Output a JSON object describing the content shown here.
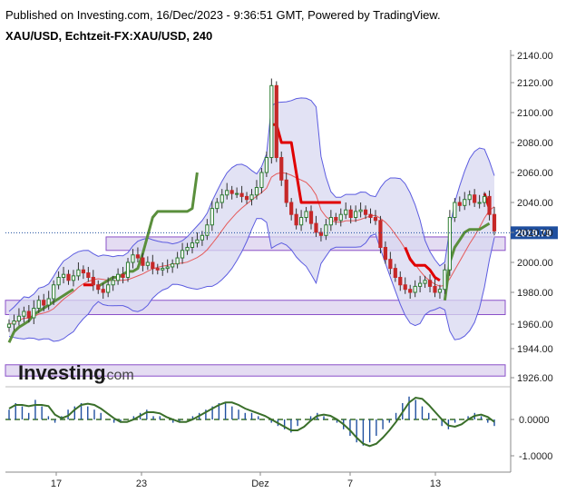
{
  "header": {
    "published": "Published on Investing.com, 16/Dec/2023 - 9:36:51 GMT, Powered by TradingView.",
    "symbol": "XAU/USD, Echtzeit-FX:XAU/USD, 240"
  },
  "logo": {
    "word": "Investing",
    "domain": ".com"
  },
  "colors": {
    "up": "#2e7d32",
    "down": "#c62828",
    "band_fill": "#d8d8f0",
    "band_line": "#5c5ce0",
    "supertrend_up": "#5a8f3c",
    "supertrend_down": "#e00000",
    "mid_line": "#e55a5a",
    "zone_fill": "#e4dcf2",
    "zone_line": "#8a50c8",
    "macd_line": "#3a6f2a",
    "hist": "#1f4f9f"
  },
  "chart_data": [
    {
      "type": "candlestick",
      "title": "XAU/USD, Echtzeit-FX:XAU/USD, 240",
      "y_axis_ticks": [
        "2140.00",
        "2120.00",
        "2100.00",
        "2080.00",
        "2060.00",
        "2040.00",
        "2020.00",
        "2000.00",
        "1980.00",
        "1960.00",
        "1944.00",
        "1926.00"
      ],
      "ylim": [
        1920,
        2145
      ],
      "x_axis_ticks": [
        "17",
        "23",
        "Dez",
        "7",
        "13"
      ],
      "last_price": "2019.79",
      "close_approx": [
        1960,
        1962,
        1965,
        1968,
        1964,
        1970,
        1975,
        1972,
        1976,
        1985,
        1990,
        1992,
        1988,
        1991,
        1995,
        1993,
        1990,
        1985,
        1982,
        1980,
        1985,
        1988,
        1992,
        1990,
        2000,
        2005,
        2003,
        1998,
        2000,
        1996,
        1995,
        1996,
        1997,
        1999,
        2003,
        2008,
        2010,
        2013,
        2015,
        2018,
        2025,
        2036,
        2040,
        2045,
        2048,
        2046,
        2046,
        2044,
        2042,
        2045,
        2050,
        2060,
        2070,
        2118,
        2070,
        2055,
        2040,
        2032,
        2025,
        2030,
        2034,
        2026,
        2020,
        2018,
        2025,
        2030,
        2028,
        2032,
        2035,
        2030,
        2034,
        2035,
        2032,
        2030,
        2028,
        2010,
        2002,
        1996,
        1990,
        1985,
        1982,
        1980,
        1984,
        1986,
        1988,
        1984,
        1980,
        1982,
        1995,
        2030,
        2040,
        2038,
        2042,
        2045,
        2040,
        2040,
        2044,
        2032,
        2021
      ],
      "supertrend_up_segments": [
        [
          1948,
          1955,
          1958,
          1960,
          1962,
          1966,
          1968,
          1970,
          1972,
          1974,
          1976,
          1978,
          1980,
          1982
        ],
        [
          1984,
          1986,
          1988,
          1990,
          1990,
          1992,
          1994,
          1994,
          1996,
          2006,
          2018,
          2030,
          2034,
          2034,
          2034,
          2034,
          2034,
          2034,
          2034,
          2036,
          2060
        ],
        [
          1975,
          2000,
          2010,
          2015,
          2020,
          2022,
          2022,
          2022,
          2024,
          2026
        ]
      ],
      "supertrend_down_segments": [
        [
          1985,
          1985,
          1985
        ],
        [
          2092,
          2092,
          2080,
          2080,
          2080,
          2060,
          2040,
          2040,
          2040,
          2040,
          2040,
          2040,
          2040,
          2040,
          2040
        ],
        [
          2010,
          2002,
          1998,
          1998,
          1998,
          1995,
          1990,
          1988
        ],
        [
          2046,
          2036
        ]
      ],
      "support_resistance_zones": [
        [
          2008,
          2017
        ],
        [
          1966,
          1975
        ],
        [
          1927,
          1934
        ]
      ],
      "macd": {
        "y_axis_ticks": [
          "0.0000",
          "-1.0000"
        ],
        "values": [
          0.3,
          0.5,
          0.4,
          0.2,
          0.6,
          0.4,
          0.1,
          -0.1,
          0.1,
          0.3,
          0.4,
          0.5,
          0.4,
          0.3,
          0.2,
          0.0,
          -0.1,
          -0.1,
          0.0,
          0.1,
          0.2,
          0.3,
          0.1,
          0.1,
          0.0,
          -0.1,
          -0.1,
          0.0,
          0.1,
          0.2,
          0.3,
          0.4,
          0.5,
          0.5,
          0.4,
          0.3,
          0.2,
          0.2,
          0.1,
          0.0,
          -0.1,
          -0.2,
          -0.3,
          -0.4,
          -0.2,
          0.0,
          0.1,
          0.2,
          0.1,
          0.0,
          -0.1,
          -0.3,
          -0.5,
          -0.7,
          -0.8,
          -0.7,
          -0.5,
          -0.3,
          -0.1,
          0.2,
          0.5,
          0.7,
          0.6,
          0.4,
          0.2,
          0.0,
          -0.2,
          -0.3,
          -0.1,
          0.0,
          0.1,
          0.2,
          0.1,
          -0.1,
          -0.2
        ]
      }
    }
  ]
}
